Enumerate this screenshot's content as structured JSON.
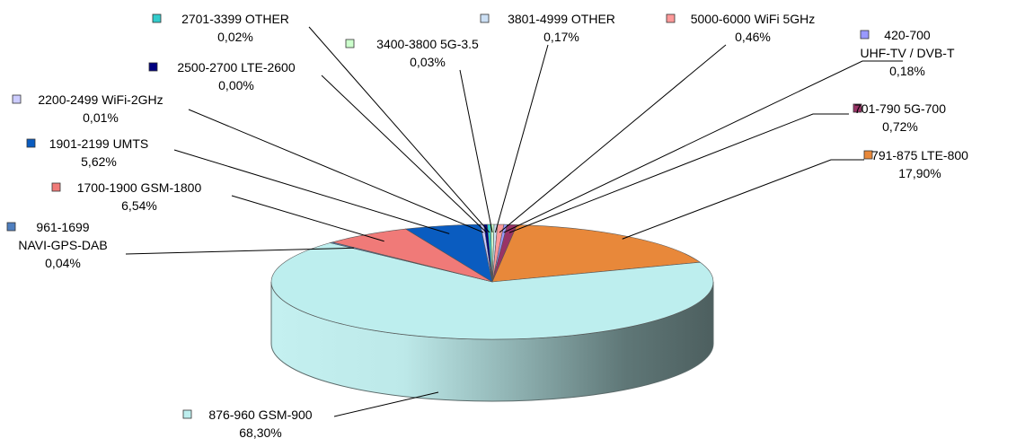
{
  "chart_data": {
    "type": "pie",
    "title": "",
    "legend": "none",
    "style": "3d-tilted",
    "slices": [
      {
        "category": "420-700",
        "label_line2": "UHF-TV / DVB-T",
        "value_label": "0,18%",
        "value": 0.18,
        "color": "#9999ff"
      },
      {
        "category": "701-790 5G-700",
        "value_label": "0,72%",
        "value": 0.72,
        "color": "#993366"
      },
      {
        "category": "791-875 LTE-800",
        "value_label": "17,90%",
        "value": 17.9,
        "color": "#e8883a"
      },
      {
        "category": "876-960 GSM-900",
        "value_label": "68,30%",
        "value": 68.3,
        "color": "#bdeeee"
      },
      {
        "category": "961-1699",
        "label_line2": "NAVI-GPS-DAB",
        "value_label": "0,04%",
        "value": 0.04,
        "color": "#4f7fbf"
      },
      {
        "category": "1700-1900 GSM-1800",
        "value_label": "6,54%",
        "value": 6.54,
        "color": "#f07a78"
      },
      {
        "category": "1901-2199 UMTS",
        "value_label": "5,62%",
        "value": 5.62,
        "color": "#0a5cc0"
      },
      {
        "category": "2200-2499 WiFi-2GHz",
        "value_label": "0,01%",
        "value": 0.01,
        "color": "#ccccff"
      },
      {
        "category": "2500-2700 LTE-2600",
        "value_label": "0,00%",
        "value": 0.0,
        "color": "#000080"
      },
      {
        "category": "2701-3399 OTHER",
        "value_label": "0,02%",
        "value": 0.02,
        "color": "#33cccc"
      },
      {
        "category": "3400-3800 5G-3.5",
        "value_label": "0,03%",
        "value": 0.03,
        "color": "#ccffcc"
      },
      {
        "category": "3801-4999 OTHER",
        "value_label": "0,17%",
        "value": 0.17,
        "color": "#cce0f5"
      },
      {
        "category": "5000-6000 WiFi 5GHz",
        "value_label": "0,46%",
        "value": 0.46,
        "color": "#ff9999"
      }
    ]
  }
}
